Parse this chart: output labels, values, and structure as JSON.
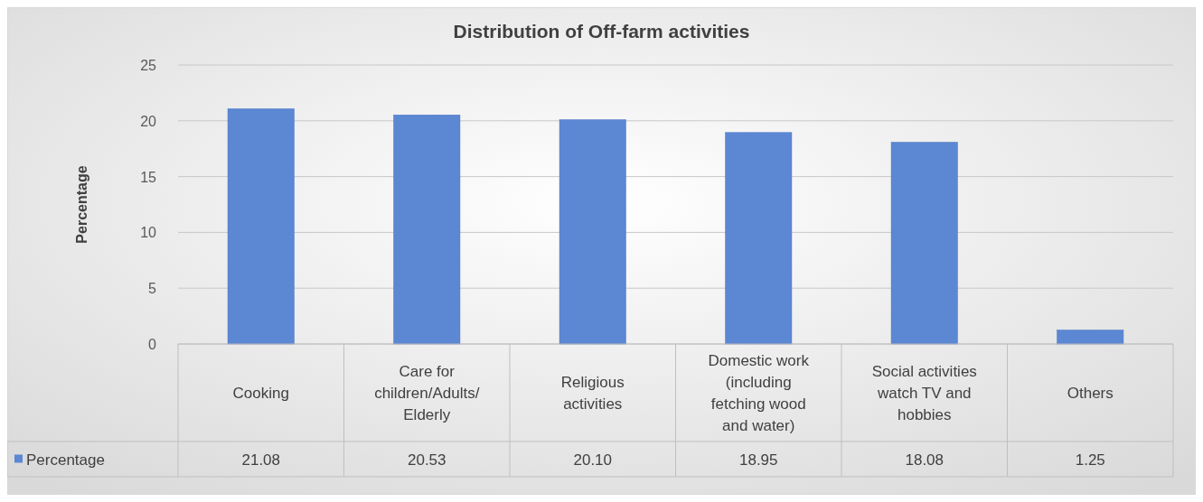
{
  "chart_data": {
    "type": "bar",
    "title": "Distribution of Off-farm activities",
    "ylabel": "Percentage",
    "categories": [
      "Cooking",
      "Care for children/Adults/Elderly",
      "Religious activities",
      "Domestic work (including fetching wood and water)",
      "Social activities watch TV and hobbies",
      "Others"
    ],
    "series": [
      {
        "name": "Percentage",
        "color": "#5b87d3",
        "values": [
          21.08,
          20.53,
          20.1,
          18.95,
          18.08,
          1.25
        ],
        "value_labels": [
          "21.08",
          "20.53",
          "20.10",
          "18.95",
          "18.08",
          "1.25"
        ]
      }
    ],
    "ylim": [
      0,
      25
    ],
    "yticks": [
      0,
      5,
      10,
      15,
      20,
      25
    ],
    "grid": "y",
    "legend": "bottom"
  }
}
